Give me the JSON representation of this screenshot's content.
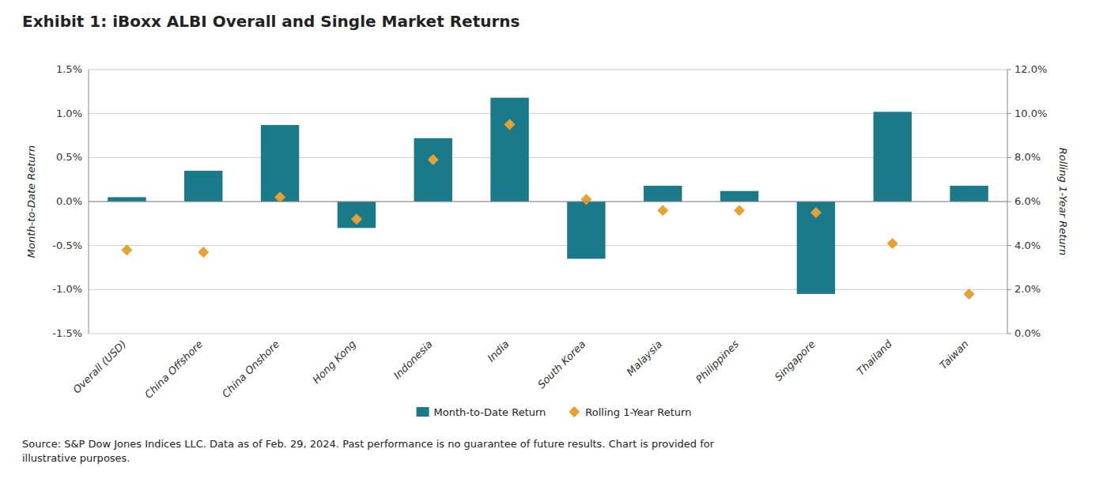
{
  "chart_data": {
    "type": "bar",
    "title": "Exhibit 1: iBoxx ALBI Overall and Single Market Returns",
    "categories": [
      "Overall (USD)",
      "China Offshore",
      "China Onshore",
      "Hong Kong",
      "Indonesia",
      "India",
      "South Korea",
      "Malaysia",
      "Philippines",
      "Singapore",
      "Thailand",
      "Taiwan"
    ],
    "series": [
      {
        "name": "Month-to-Date Return",
        "type": "bar",
        "color": "#1a7a8a",
        "values": [
          0.0005,
          0.0035,
          0.0087,
          -0.003,
          0.0072,
          0.0118,
          -0.0065,
          0.0018,
          0.0012,
          -0.0105,
          0.0102,
          0.0018
        ]
      },
      {
        "name": "Rolling 1-Year Return",
        "type": "scatter",
        "marker": "diamond",
        "axis": "y2",
        "color": "#e8a030",
        "values": [
          0.038,
          0.037,
          0.062,
          0.052,
          0.079,
          0.095,
          0.061,
          0.056,
          0.056,
          0.055,
          0.041,
          0.018
        ]
      }
    ],
    "ylabel": "Month-to-Date Return",
    "y2label": "Rolling 1-Year Return",
    "ylim": [
      -0.015,
      0.015
    ],
    "yticks": [
      {
        "value": -0.015,
        "label": "-1.5%"
      },
      {
        "value": -0.01,
        "label": "-1.0%"
      },
      {
        "value": -0.005,
        "label": "-0.5%"
      },
      {
        "value": 0.0,
        "label": "0.0%"
      },
      {
        "value": 0.005,
        "label": "0.5%"
      },
      {
        "value": 0.01,
        "label": "1.0%"
      },
      {
        "value": 0.015,
        "label": "1.5%"
      }
    ],
    "y2lim": [
      0.0,
      0.12
    ],
    "y2ticks": [
      {
        "value": 0.0,
        "label": "0.0%"
      },
      {
        "value": 0.02,
        "label": "2.0%"
      },
      {
        "value": 0.04,
        "label": "4.0%"
      },
      {
        "value": 0.06,
        "label": "6.0%"
      },
      {
        "value": 0.08,
        "label": "8.0%"
      },
      {
        "value": 0.1,
        "label": "10.0%"
      },
      {
        "value": 0.12,
        "label": "12.0%"
      }
    ],
    "grid": true,
    "legend": "bottom",
    "annotations": [
      "Source: S&P Dow Jones Indices LLC.  Data as of Feb. 29, 2024.  Past performance is no guarantee of future results.  Chart is provided for\nillustrative purposes."
    ]
  }
}
